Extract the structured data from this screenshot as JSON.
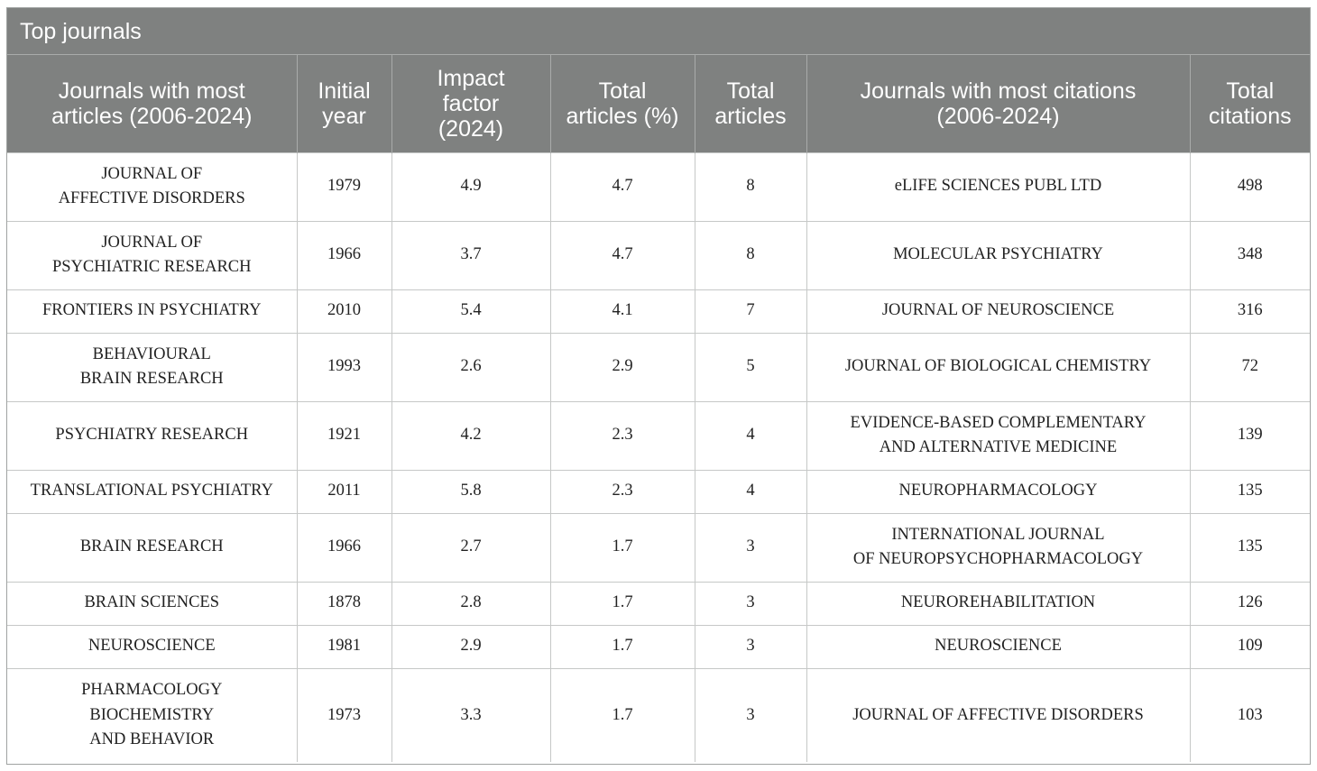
{
  "caption": "Top journals",
  "columns": [
    "Journals with most\narticles (2006-2024)",
    "Initial\nyear",
    "Impact\nfactor\n(2024)",
    "Total\narticles (%)",
    "Total\narticles",
    "Journals with most citations\n(2006-2024)",
    "Total\ncitations"
  ],
  "rows": [
    {
      "journal": "JOURNAL OF\nAFFECTIVE DISORDERS",
      "year": "1979",
      "impact": "4.9",
      "pct": "4.7",
      "articles": "8",
      "cited_journal": "eLIFE SCIENCES PUBL LTD",
      "citations": "498"
    },
    {
      "journal": "JOURNAL OF\nPSYCHIATRIC RESEARCH",
      "year": "1966",
      "impact": "3.7",
      "pct": "4.7",
      "articles": "8",
      "cited_journal": "MOLECULAR PSYCHIATRY",
      "citations": "348"
    },
    {
      "journal": "FRONTIERS IN PSYCHIATRY",
      "year": "2010",
      "impact": "5.4",
      "pct": "4.1",
      "articles": "7",
      "cited_journal": "JOURNAL OF NEUROSCIENCE",
      "citations": "316"
    },
    {
      "journal": "BEHAVIOURAL\nBRAIN RESEARCH",
      "year": "1993",
      "impact": "2.6",
      "pct": "2.9",
      "articles": "5",
      "cited_journal": "JOURNAL OF BIOLOGICAL CHEMISTRY",
      "citations": "72"
    },
    {
      "journal": "PSYCHIATRY RESEARCH",
      "year": "1921",
      "impact": "4.2",
      "pct": "2.3",
      "articles": "4",
      "cited_journal": "EVIDENCE-BASED COMPLEMENTARY\nAND ALTERNATIVE MEDICINE",
      "citations": "139"
    },
    {
      "journal": "TRANSLATIONAL PSYCHIATRY",
      "year": "2011",
      "impact": "5.8",
      "pct": "2.3",
      "articles": "4",
      "cited_journal": "NEUROPHARMACOLOGY",
      "citations": "135"
    },
    {
      "journal": "BRAIN RESEARCH",
      "year": "1966",
      "impact": "2.7",
      "pct": "1.7",
      "articles": "3",
      "cited_journal": "INTERNATIONAL JOURNAL\nOF NEUROPSYCHOPHARMACOLOGY",
      "citations": "135"
    },
    {
      "journal": "BRAIN SCIENCES",
      "year": "1878",
      "impact": "2.8",
      "pct": "1.7",
      "articles": "3",
      "cited_journal": "NEUROREHABILITATION",
      "citations": "126"
    },
    {
      "journal": "NEUROSCIENCE",
      "year": "1981",
      "impact": "2.9",
      "pct": "1.7",
      "articles": "3",
      "cited_journal": "NEUROSCIENCE",
      "citations": "109"
    },
    {
      "journal": "PHARMACOLOGY\nBIOCHEMISTRY\nAND BEHAVIOR",
      "year": "1973",
      "impact": "3.3",
      "pct": "1.7",
      "articles": "3",
      "cited_journal": "JOURNAL OF AFFECTIVE DISORDERS",
      "citations": "103"
    }
  ]
}
